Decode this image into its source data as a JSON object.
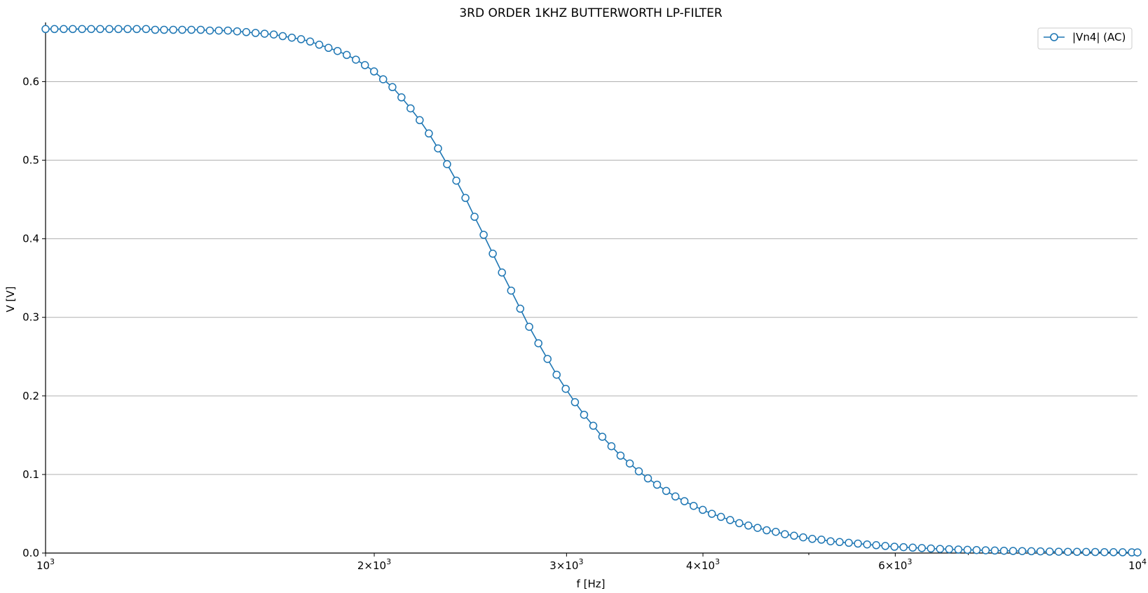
{
  "chart_data": {
    "type": "line",
    "title": "3RD ORDER 1KHZ BUTTERWORTH LP-FILTER",
    "xlabel": "f [Hz]",
    "ylabel": "V [V]",
    "xscale": "log",
    "xlim": [
      1000,
      10000
    ],
    "ylim": [
      0,
      0.67
    ],
    "grid": "y-major",
    "legend_position": "top-right",
    "x_tick_labels": [
      {
        "value": 1000,
        "base": "10",
        "exp": "3",
        "mantissa": ""
      },
      {
        "value": 2000,
        "base": "10",
        "exp": "3",
        "mantissa": "2×"
      },
      {
        "value": 3000,
        "base": "10",
        "exp": "3",
        "mantissa": "3×"
      },
      {
        "value": 4000,
        "base": "10",
        "exp": "3",
        "mantissa": "4×"
      },
      {
        "value": 6000,
        "base": "10",
        "exp": "3",
        "mantissa": "6×"
      },
      {
        "value": 10000,
        "base": "10",
        "exp": "4",
        "mantissa": ""
      }
    ],
    "y_ticks": [
      0.0,
      0.1,
      0.2,
      0.3,
      0.4,
      0.5,
      0.6
    ],
    "y_tick_labels": [
      "0.0",
      "0.1",
      "0.2",
      "0.3",
      "0.4",
      "0.5",
      "0.6"
    ],
    "colors": {
      "series": "#1f77b4",
      "grid": "#b0b0b0"
    },
    "series": [
      {
        "name": "|Vn4| (AC)",
        "marker": "circle-open",
        "x": [
          1000,
          1019,
          1039,
          1059,
          1080,
          1101,
          1122,
          1144,
          1166,
          1189,
          1212,
          1236,
          1260,
          1284,
          1309,
          1334,
          1360,
          1387,
          1414,
          1441,
          1469,
          1498,
          1527,
          1557,
          1587,
          1618,
          1649,
          1681,
          1714,
          1747,
          1781,
          1816,
          1851,
          1887,
          1924,
          1961,
          1999,
          2038,
          2078,
          2118,
          2159,
          2201,
          2244,
          2288,
          2332,
          2378,
          2424,
          2471,
          2519,
          2568,
          2618,
          2669,
          2721,
          2773,
          2827,
          2882,
          2938,
          2995,
          3054,
          3113,
          3174,
          3235,
          3298,
          3362,
          3428,
          3494,
          3562,
          3631,
          3702,
          3774,
          3847,
          3922,
          3998,
          4076,
          4155,
          4236,
          4318,
          4402,
          4488,
          4575,
          4664,
          4754,
          4847,
          4941,
          5037,
          5135,
          5235,
          5336,
          5440,
          5546,
          5654,
          5764,
          5876,
          5990,
          6106,
          6225,
          6346,
          6469,
          6595,
          6723,
          6854,
          6987,
          7123,
          7261,
          7402,
          7546,
          7693,
          7842,
          7995,
          8150,
          8309,
          8470,
          8635,
          8803,
          8974,
          9148,
          9326,
          9507,
          9692,
          9881,
          10000
        ],
        "y": [
          0.667,
          0.667,
          0.667,
          0.667,
          0.667,
          0.667,
          0.667,
          0.667,
          0.667,
          0.667,
          0.667,
          0.667,
          0.666,
          0.666,
          0.666,
          0.666,
          0.666,
          0.666,
          0.665,
          0.665,
          0.665,
          0.664,
          0.663,
          0.662,
          0.661,
          0.66,
          0.658,
          0.656,
          0.654,
          0.651,
          0.647,
          0.643,
          0.639,
          0.634,
          0.628,
          0.621,
          0.613,
          0.603,
          0.593,
          0.58,
          0.566,
          0.551,
          0.534,
          0.515,
          0.495,
          0.474,
          0.452,
          0.428,
          0.405,
          0.381,
          0.357,
          0.334,
          0.311,
          0.288,
          0.267,
          0.247,
          0.227,
          0.209,
          0.192,
          0.176,
          0.162,
          0.148,
          0.136,
          0.124,
          0.114,
          0.104,
          0.095,
          0.087,
          0.079,
          0.072,
          0.066,
          0.06,
          0.055,
          0.05,
          0.046,
          0.042,
          0.038,
          0.035,
          0.032,
          0.029,
          0.027,
          0.024,
          0.022,
          0.02,
          0.018,
          0.017,
          0.015,
          0.014,
          0.013,
          0.012,
          0.011,
          0.01,
          0.009,
          0.008,
          0.0075,
          0.0069,
          0.0063,
          0.0058,
          0.0053,
          0.0049,
          0.0045,
          0.0041,
          0.0038,
          0.0035,
          0.0032,
          0.0029,
          0.0027,
          0.0025,
          0.0023,
          0.0021,
          0.0019,
          0.0017,
          0.0016,
          0.0015,
          0.0014,
          0.0013,
          0.0012,
          0.0011,
          0.001,
          0.0009,
          0.0008
        ]
      }
    ]
  }
}
